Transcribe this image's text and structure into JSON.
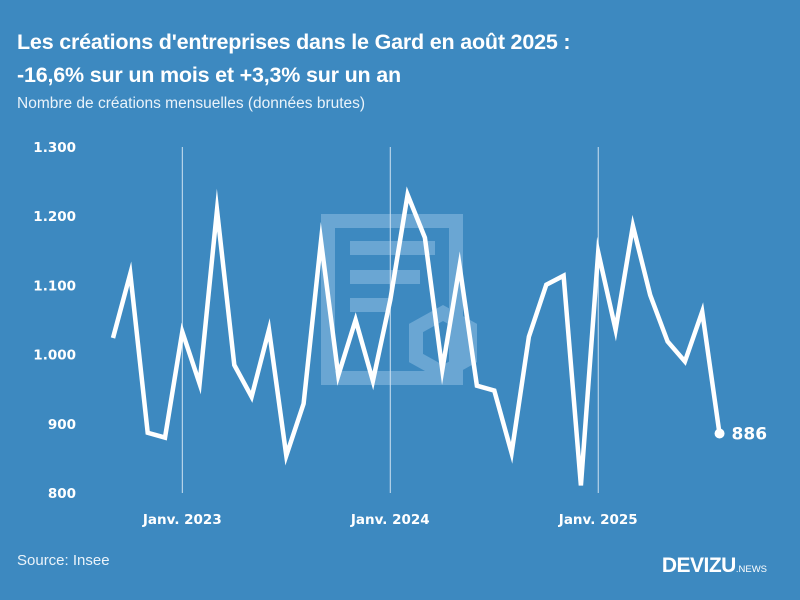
{
  "header": {
    "title_line1": "Les créations d'entreprises dans le Gard en août 2025 :",
    "title_line2": "-16,6% sur un mois et +3,3% sur un an",
    "subtitle": "Nombre de créations mensuelles (données brutes)"
  },
  "footer": {
    "source": "Source: Insee",
    "brand_main": "DEVIZU",
    "brand_sub": ".NEWS"
  },
  "colors": {
    "background": "#3d89c0",
    "line": "#ffffff",
    "watermark": "#6aa6d3"
  },
  "chart_data": {
    "type": "line",
    "title": "Les créations d'entreprises dans le Gard en août 2025 : -16,6% sur un mois et +3,3% sur un an",
    "subtitle": "Nombre de créations mensuelles (données brutes)",
    "xlabel": "",
    "ylabel": "",
    "ylim": [
      800,
      1300
    ],
    "yticks": [
      1300,
      1200,
      1100,
      1000,
      900,
      800
    ],
    "ytick_labels": [
      "1.300",
      "1.200",
      "1.100",
      "1.000",
      "900",
      "800"
    ],
    "xticks": [
      {
        "label": "Janv. 2023",
        "index": 4
      },
      {
        "label": "Janv. 2024",
        "index": 16
      },
      {
        "label": "Janv. 2025",
        "index": 28
      }
    ],
    "grid": "vertical lines at January",
    "legend": "none",
    "x": [
      "2022-09",
      "2022-10",
      "2022-11",
      "2022-12",
      "2023-01",
      "2023-02",
      "2023-03",
      "2023-04",
      "2023-05",
      "2023-06",
      "2023-07",
      "2023-08",
      "2023-09",
      "2023-10",
      "2023-11",
      "2023-12",
      "2024-01",
      "2024-02",
      "2024-03",
      "2024-04",
      "2024-05",
      "2024-06",
      "2024-07",
      "2024-08",
      "2024-09",
      "2024-10",
      "2024-11",
      "2024-12",
      "2025-01",
      "2025-02",
      "2025-03",
      "2025-04",
      "2025-05",
      "2025-06",
      "2025-07",
      "2025-08"
    ],
    "series": [
      {
        "name": "Créations mensuelles",
        "values": [
          1024,
          1117,
          887,
          880,
          1033,
          958,
          1209,
          985,
          939,
          1036,
          854,
          929,
          1164,
          970,
          1050,
          962,
          1079,
          1231,
          1169,
          978,
          1128,
          955,
          948,
          858,
          1026,
          1101,
          1114,
          811,
          1148,
          1036,
          1186,
          1086,
          1019,
          990,
          1062,
          886
        ]
      }
    ],
    "end_label": "886"
  }
}
